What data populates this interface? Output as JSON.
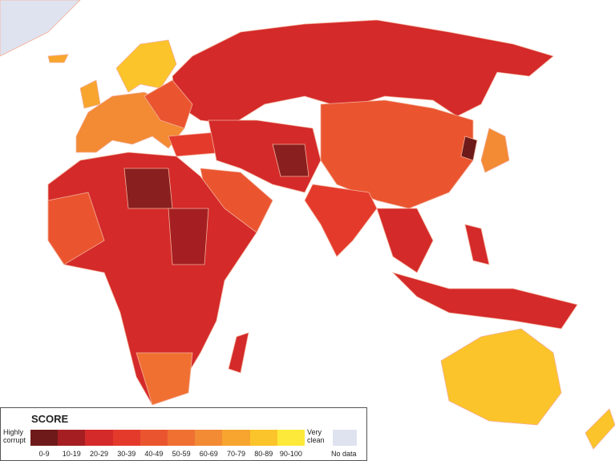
{
  "legend": {
    "title": "SCORE",
    "low_label": "Highly corrupt",
    "high_label": "Very clean",
    "bins": [
      {
        "label": "0-9",
        "color": "#6e1a1a"
      },
      {
        "label": "10-19",
        "color": "#a51f22"
      },
      {
        "label": "20-29",
        "color": "#d42a2a"
      },
      {
        "label": "30-39",
        "color": "#e43a2c"
      },
      {
        "label": "40-49",
        "color": "#ea5530"
      },
      {
        "label": "50-59",
        "color": "#f07032"
      },
      {
        "label": "60-69",
        "color": "#f38a34"
      },
      {
        "label": "70-79",
        "color": "#f7a52e"
      },
      {
        "label": "80-89",
        "color": "#fbc42a"
      },
      {
        "label": "90-100",
        "color": "#fde93a"
      }
    ],
    "no_data": {
      "label": "No data",
      "color": "#dfe3ef"
    }
  }
}
